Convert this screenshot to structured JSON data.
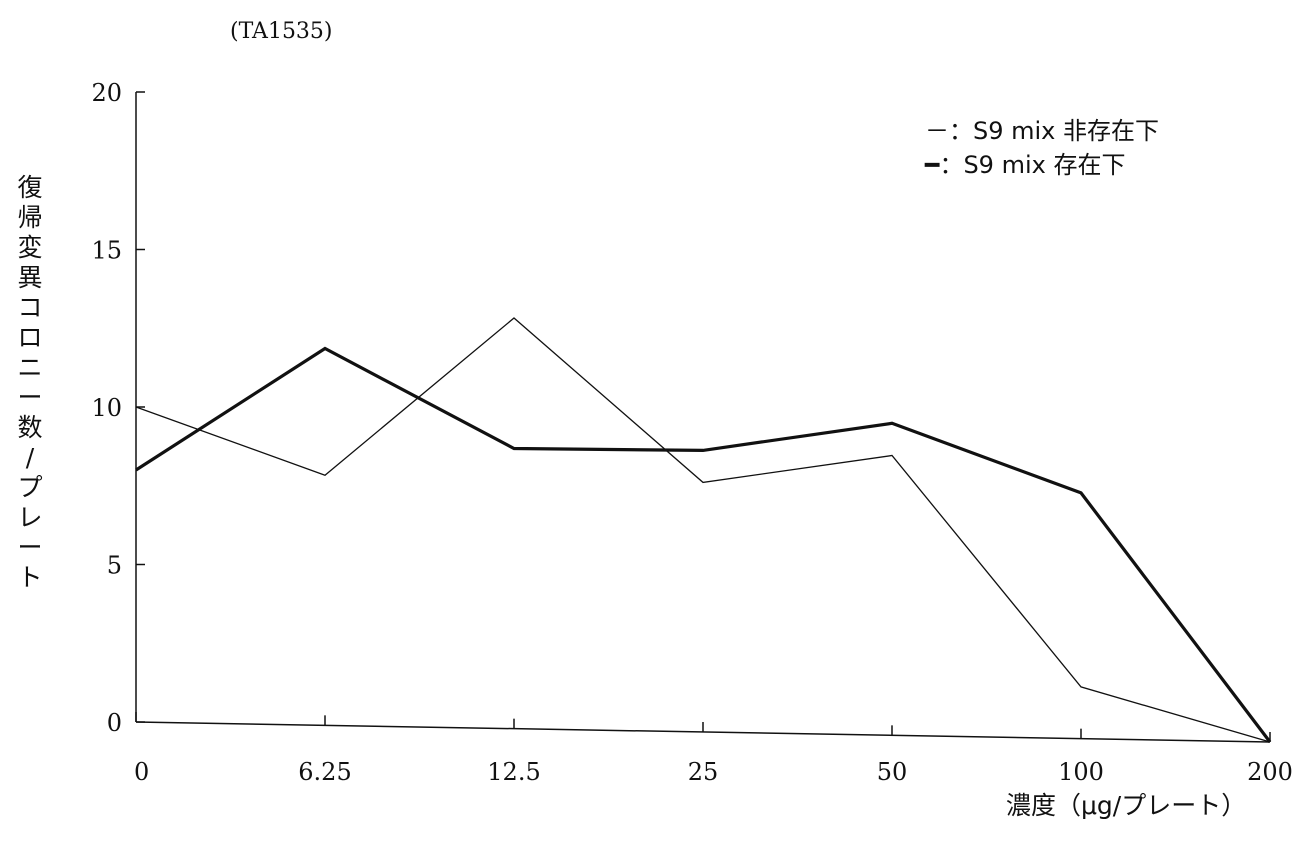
{
  "chart_data": {
    "type": "line",
    "title": "(TA1535)",
    "xlabel": "濃度（μg/プレート）",
    "ylabel": "復帰変異コロニー数/プレート",
    "ylabel_chars": [
      "復",
      "帰",
      "変",
      "異",
      "コ",
      "ロ",
      "ニ",
      "ー",
      "数",
      "/",
      "プ",
      "レ",
      "ー",
      "ト"
    ],
    "categories": [
      "0",
      "6.25",
      "12.5",
      "25",
      "50",
      "100",
      "200"
    ],
    "ylim": [
      0,
      20
    ],
    "yticks": [
      "0",
      "5",
      "10",
      "15",
      "20"
    ],
    "grid": false,
    "legend_position": "top-right",
    "series": [
      {
        "name": "S9 mix 非存在下",
        "legend_label": "－：S9 mix 非存在下",
        "style": "thin",
        "values": [
          10,
          7.9,
          12.9,
          7.8,
          8.7,
          1.6,
          0
        ]
      },
      {
        "name": "S9 mix 存在下",
        "legend_label": "━：S9 mix 存在下",
        "style": "thick",
        "values": [
          8,
          11.9,
          8.8,
          8.8,
          9.7,
          7.6,
          0
        ]
      }
    ]
  }
}
